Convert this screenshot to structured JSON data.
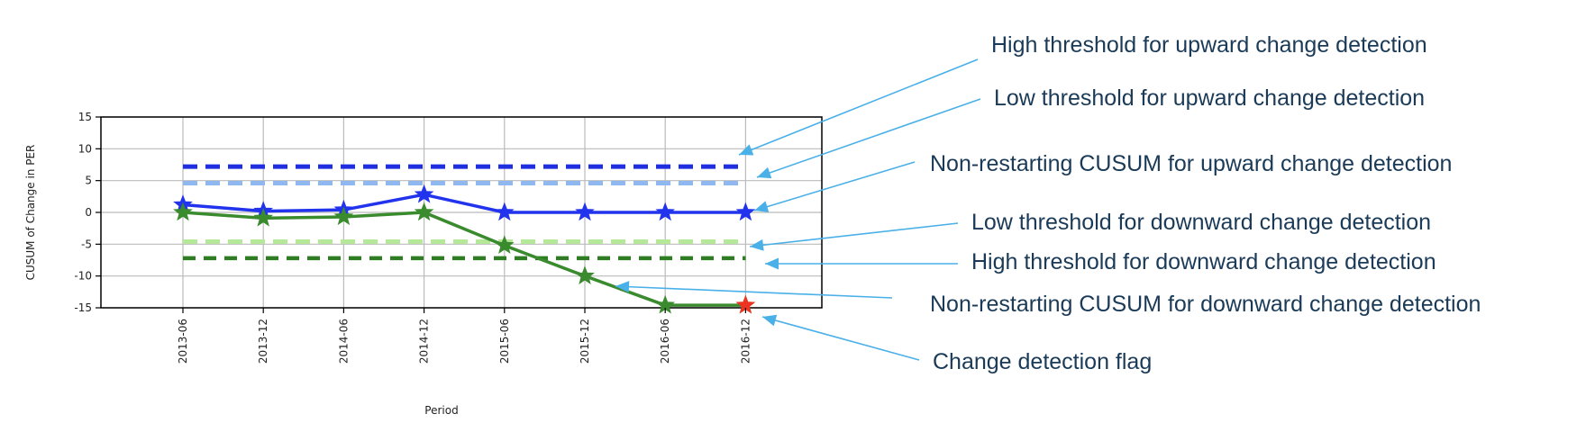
{
  "colors": {
    "upper_high": "#1f2fe0",
    "upper_low": "#8fb7f0",
    "lower_low": "#b6e89a",
    "lower_high": "#2e7d22",
    "cusum_up": "#2233ee",
    "cusum_down": "#3a8a2e",
    "flag": "#ee3322",
    "arrow": "#4ab0e8",
    "annotation_text": "#1a3a57",
    "grid": "#bbbbbb"
  },
  "chart_data": {
    "type": "line",
    "xlabel": "Period",
    "ylabel": "CUSUM of Change in PER",
    "ylim": [
      -15,
      15
    ],
    "yticks": [
      "15",
      "10",
      "5",
      "0",
      "-5",
      "-10",
      "-15"
    ],
    "categories": [
      "2013-06",
      "2013-12",
      "2014-06",
      "2014-12",
      "2015-06",
      "2015-12",
      "2016-06",
      "2016-12"
    ],
    "series": [
      {
        "key": "upper_high",
        "style": "dashed",
        "values": [
          7.2,
          7.2,
          7.2,
          7.2,
          7.2,
          7.2,
          7.2,
          7.2
        ]
      },
      {
        "key": "upper_low",
        "style": "dashed",
        "values": [
          4.6,
          4.6,
          4.6,
          4.6,
          4.6,
          4.6,
          4.6,
          4.6
        ]
      },
      {
        "key": "lower_low",
        "style": "dashed",
        "values": [
          -4.6,
          -4.6,
          -4.6,
          -4.6,
          -4.6,
          -4.6,
          -4.6,
          -4.6
        ]
      },
      {
        "key": "lower_high",
        "style": "dashed",
        "values": [
          -7.2,
          -7.2,
          -7.2,
          -7.2,
          -7.2,
          -7.2,
          -7.2,
          -7.2
        ]
      },
      {
        "key": "cusum_up",
        "style": "solid-star",
        "values": [
          1.2,
          0.2,
          0.4,
          2.8,
          0.0,
          0.0,
          0.0,
          0.0
        ]
      },
      {
        "key": "cusum_down",
        "style": "solid-star",
        "values": [
          0.0,
          -0.9,
          -0.7,
          0.0,
          -5.2,
          -10.0,
          -14.6,
          -14.6
        ]
      }
    ],
    "flags": [
      {
        "category": "2016-12",
        "value": -14.6
      }
    ]
  },
  "annotations": [
    "High threshold for upward change detection",
    "Low threshold for upward change detection",
    "Non-restarting CUSUM for upward change detection",
    "Low threshold for downward change detection",
    "High threshold for downward change detection",
    "Non-restarting CUSUM for downward change detection",
    "Change detection flag"
  ]
}
